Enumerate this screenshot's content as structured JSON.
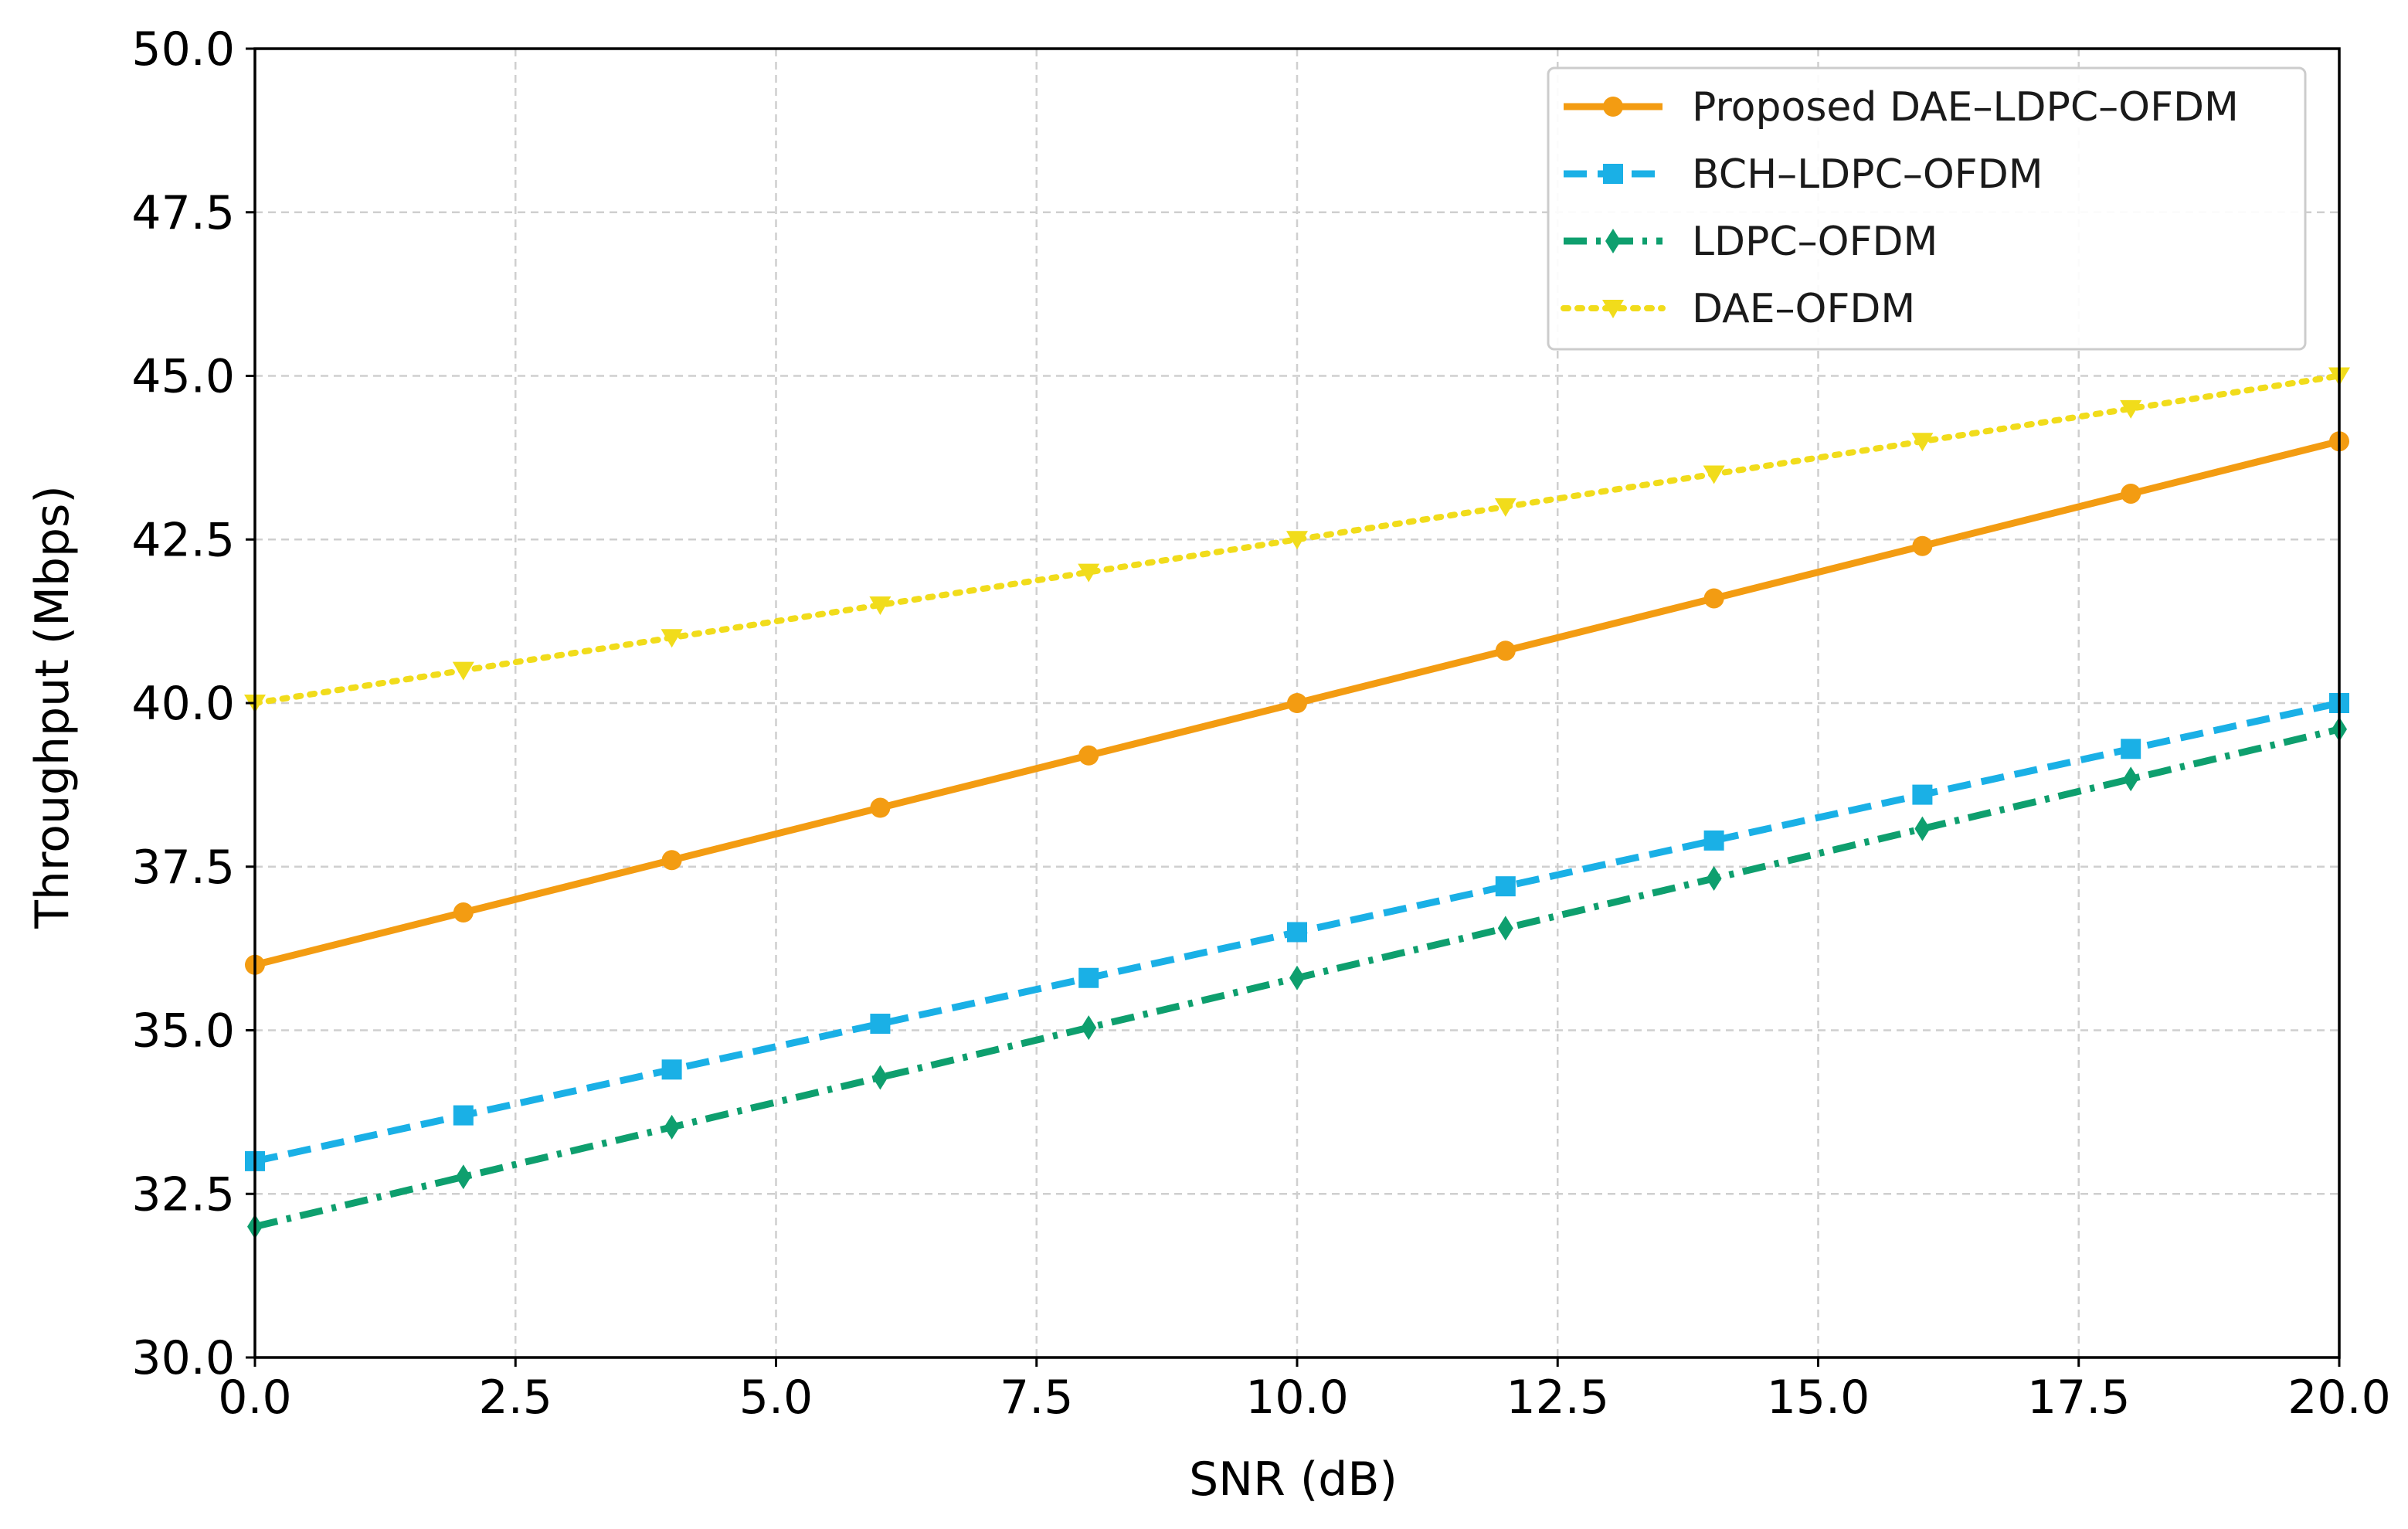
{
  "chart_data": {
    "type": "line",
    "title": "",
    "xlabel": "SNR (dB)",
    "ylabel": "Throughput (Mbps)",
    "xlim": [
      0,
      20
    ],
    "ylim": [
      30,
      50
    ],
    "xticks": [
      0,
      2.5,
      5,
      7.5,
      10,
      12.5,
      15,
      17.5,
      20
    ],
    "xtick_labels": [
      "0.0",
      "2.5",
      "5.0",
      "7.5",
      "10.0",
      "12.5",
      "15.0",
      "17.5",
      "20.0"
    ],
    "yticks": [
      30,
      32.5,
      35,
      37.5,
      40,
      42.5,
      45,
      47.5,
      50
    ],
    "ytick_labels": [
      "30.0",
      "32.5",
      "35.0",
      "37.5",
      "40.0",
      "42.5",
      "45.0",
      "47.5",
      "50.0"
    ],
    "grid": true,
    "legend_position": "top-right",
    "x": [
      0,
      2,
      4,
      6,
      8,
      10,
      12,
      14,
      16,
      18,
      20
    ],
    "series": [
      {
        "name": "Proposed DAE–LDPC–OFDM",
        "color": "#f39c12",
        "marker": "circle",
        "linestyle": "solid",
        "values": [
          36.0,
          36.8,
          37.6,
          38.4,
          39.2,
          40.0,
          40.8,
          41.6,
          42.4,
          43.2,
          44.0
        ]
      },
      {
        "name": "BCH–LDPC–OFDM",
        "color": "#1ab0e6",
        "marker": "square",
        "linestyle": "dashed",
        "values": [
          33.0,
          33.7,
          34.4,
          35.1,
          35.8,
          36.5,
          37.2,
          37.9,
          38.6,
          39.3,
          40.0
        ]
      },
      {
        "name": "LDPC–OFDM",
        "color": "#0e9f6e",
        "marker": "diamond",
        "linestyle": "dashdot",
        "values": [
          32.0,
          32.76,
          33.52,
          34.28,
          35.04,
          35.8,
          36.56,
          37.32,
          38.08,
          38.84,
          39.6
        ]
      },
      {
        "name": "DAE–OFDM",
        "color": "#f1dc1b",
        "marker": "triangle-down",
        "linestyle": "dotted",
        "values": [
          40.0,
          40.5,
          41.0,
          41.5,
          42.0,
          42.5,
          43.0,
          43.5,
          44.0,
          44.5,
          45.0
        ]
      }
    ]
  }
}
